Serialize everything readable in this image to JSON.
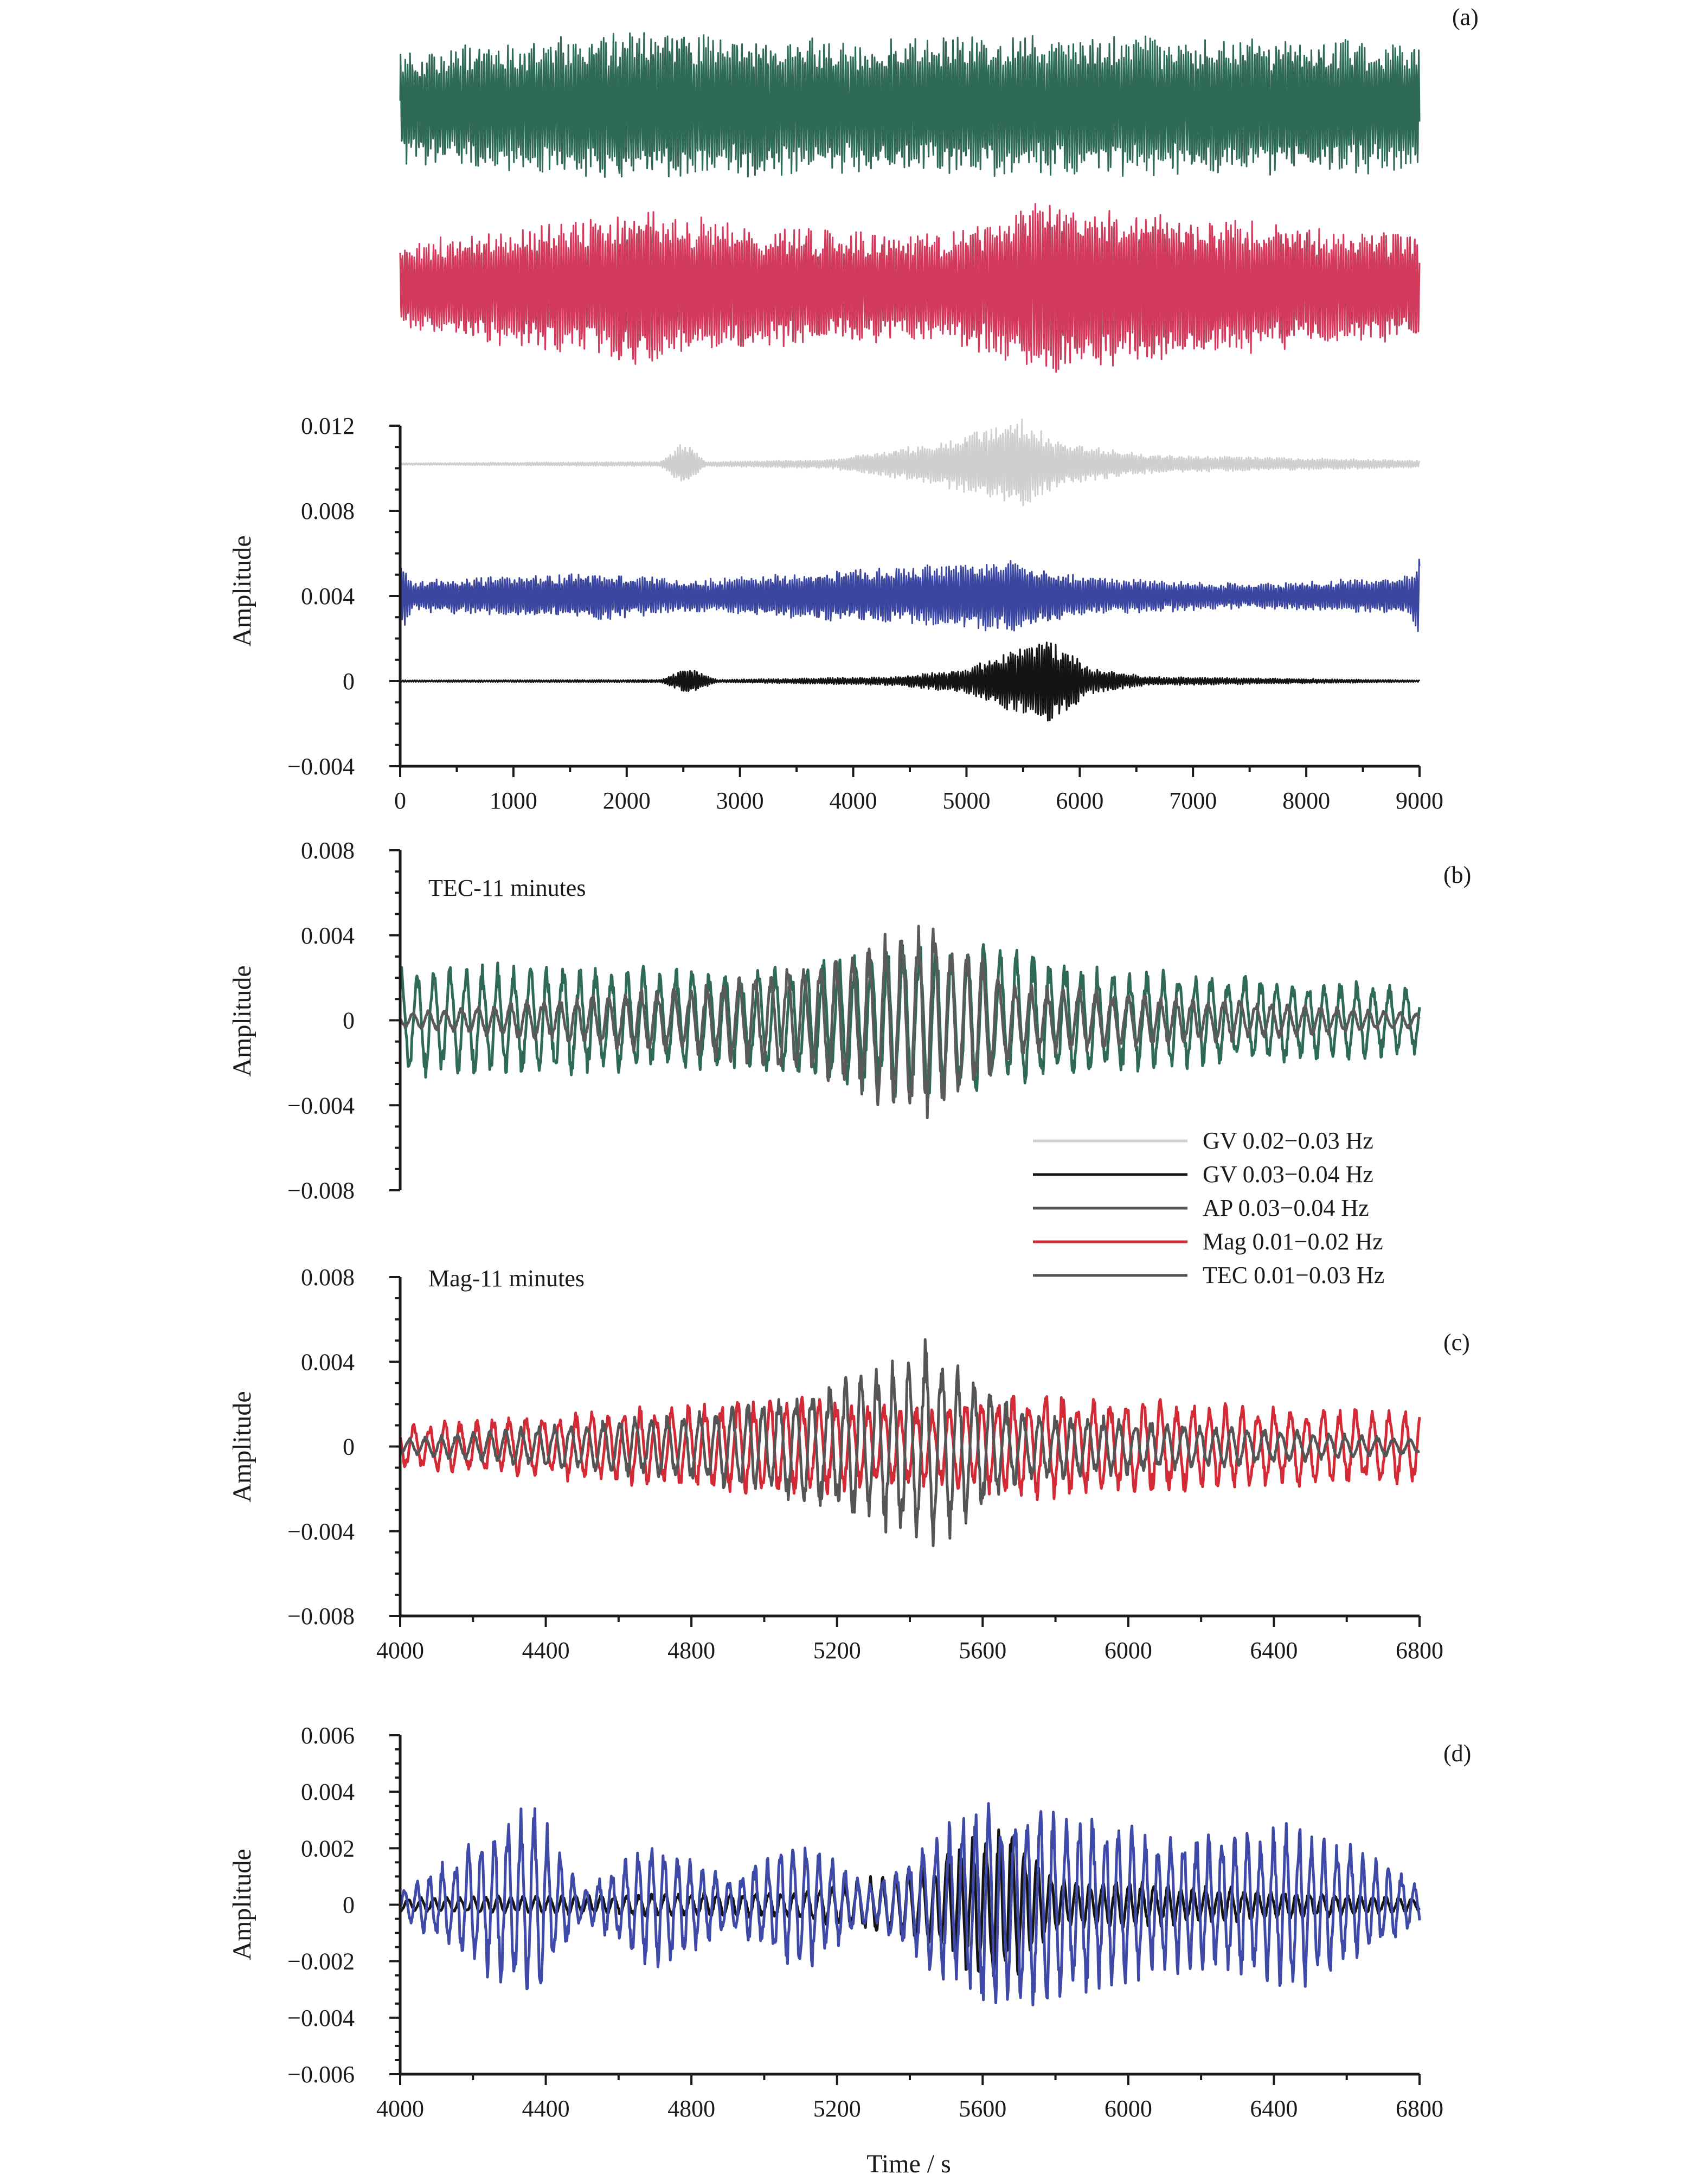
{
  "chart_data": [
    {
      "panel": "(a)",
      "type": "line",
      "ylabel": "Amplitude",
      "xlabel": "",
      "xlim": [
        0,
        9000
      ],
      "ylim": [
        -0.004,
        0.012
      ],
      "x_ticks": [
        "0",
        "1000",
        "2000",
        "3000",
        "4000",
        "5000",
        "6000",
        "7000",
        "8000",
        "9000"
      ],
      "y_ticks": [
        "0.012",
        "0.008",
        "0.004",
        "0",
        "−0.004"
      ],
      "series": [
        {
          "key": "tec",
          "color": "#2f6a57",
          "offset": 0.027,
          "amplitude": 0.0045,
          "envelope": [
            [
              0,
              0.6
            ],
            [
              2000,
              0.8
            ],
            [
              4000,
              0.7
            ],
            [
              6000,
              0.75
            ],
            [
              9000,
              0.7
            ]
          ]
        },
        {
          "key": "mag",
          "color": "#d23a5c",
          "offset": 0.0185,
          "amplitude": 0.0042,
          "envelope": [
            [
              0,
              0.5
            ],
            [
              2200,
              0.9
            ],
            [
              3000,
              0.7
            ],
            [
              4800,
              0.6
            ],
            [
              5600,
              1.0
            ],
            [
              7000,
              0.8
            ],
            [
              9000,
              0.6
            ]
          ]
        },
        {
          "key": "gv1",
          "color": "#cfcfcf",
          "offset": 0.0102,
          "amplitude": 0.0022,
          "envelope": [
            [
              0,
              0.02
            ],
            [
              2300,
              0.05
            ],
            [
              2500,
              0.5
            ],
            [
              2700,
              0.05
            ],
            [
              3800,
              0.1
            ],
            [
              4800,
              0.5
            ],
            [
              5200,
              0.8
            ],
            [
              5500,
              1.0
            ],
            [
              5800,
              0.5
            ],
            [
              6600,
              0.2
            ],
            [
              9000,
              0.08
            ]
          ]
        },
        {
          "key": "ap",
          "color": "#3a46a0",
          "offset": 0.004,
          "amplitude": 0.0019,
          "envelope": [
            [
              0,
              1.0
            ],
            [
              100,
              0.4
            ],
            [
              1800,
              0.6
            ],
            [
              2500,
              0.4
            ],
            [
              4300,
              0.7
            ],
            [
              5400,
              0.9
            ],
            [
              6000,
              0.5
            ],
            [
              7500,
              0.3
            ],
            [
              8900,
              0.5
            ],
            [
              9000,
              1.0
            ]
          ]
        },
        {
          "key": "gv2",
          "color": "#141414",
          "offset": 0.0,
          "amplitude": 0.0021,
          "envelope": [
            [
              0,
              0.02
            ],
            [
              2300,
              0.03
            ],
            [
              2550,
              0.3
            ],
            [
              2800,
              0.03
            ],
            [
              4400,
              0.1
            ],
            [
              5000,
              0.3
            ],
            [
              5700,
              1.0
            ],
            [
              6100,
              0.3
            ],
            [
              6600,
              0.1
            ],
            [
              9000,
              0.02
            ]
          ]
        }
      ]
    },
    {
      "panel": "(b)",
      "type": "line",
      "annotation": "TEC-11 minutes",
      "annotation_color": "#333333",
      "ylabel": "Amplitude",
      "xlabel": "",
      "xlim": [
        4000,
        6800
      ],
      "ylim": [
        -0.008,
        0.008
      ],
      "y_ticks": [
        "0.008",
        "0.004",
        "0",
        "−0.004",
        "−0.008"
      ],
      "series": [
        {
          "key": "tec_shifted",
          "color": "#2f6a57",
          "amplitude": 0.0035,
          "envelope": [
            [
              4000,
              0.8
            ],
            [
              5000,
              0.7
            ],
            [
              5450,
              1.2
            ],
            [
              6000,
              0.7
            ],
            [
              6800,
              0.5
            ]
          ]
        },
        {
          "key": "tec",
          "color": "#5a5a5a",
          "amplitude": 0.0035,
          "envelope": [
            [
              4000,
              0.1
            ],
            [
              4800,
              0.5
            ],
            [
              5200,
              0.9
            ],
            [
              5450,
              1.5
            ],
            [
              5700,
              0.5
            ],
            [
              6800,
              0.1
            ]
          ]
        }
      ]
    },
    {
      "panel": "(c)",
      "type": "line",
      "annotation": "Mag-11 minutes",
      "annotation_color": "#d23a5c",
      "ylabel": "Amplitude",
      "xlabel": "",
      "xlim": [
        4000,
        6800
      ],
      "ylim": [
        -0.008,
        0.008
      ],
      "x_ticks": [
        "4000",
        "4400",
        "4800",
        "5200",
        "5600",
        "6000",
        "6400",
        "6800"
      ],
      "y_ticks": [
        "0.008",
        "0.004",
        "0",
        "−0.004",
        "−0.008"
      ],
      "series": [
        {
          "key": "mag_shifted",
          "color": "#d42a36",
          "amplitude": 0.0022,
          "envelope": [
            [
              4000,
              0.5
            ],
            [
              5100,
              1.1
            ],
            [
              5500,
              0.9
            ],
            [
              5700,
              1.2
            ],
            [
              6200,
              1.0
            ],
            [
              6800,
              0.8
            ]
          ]
        },
        {
          "key": "tec",
          "color": "#555555",
          "amplitude": 0.0035,
          "envelope": [
            [
              4000,
              0.1
            ],
            [
              4800,
              0.5
            ],
            [
              5200,
              0.9
            ],
            [
              5450,
              1.5
            ],
            [
              5700,
              0.5
            ],
            [
              6800,
              0.1
            ]
          ]
        }
      ]
    },
    {
      "panel": "(d)",
      "type": "line",
      "ylabel": "Amplitude",
      "xlabel": "Time / s",
      "xlim": [
        4000,
        6800
      ],
      "ylim": [
        -0.006,
        0.006
      ],
      "x_ticks": [
        "4000",
        "4400",
        "4800",
        "5200",
        "5600",
        "6000",
        "6400",
        "6800"
      ],
      "y_ticks": [
        "0.006",
        "0.004",
        "0.002",
        "0",
        "−0.002",
        "−0.004",
        "−0.006"
      ],
      "series": [
        {
          "key": "gv2",
          "color": "#141414",
          "amplitude": 0.0025,
          "envelope": [
            [
              4000,
              0.1
            ],
            [
              5100,
              0.2
            ],
            [
              5450,
              0.6
            ],
            [
              5650,
              1.3
            ],
            [
              5800,
              0.4
            ],
            [
              6800,
              0.1
            ]
          ]
        },
        {
          "key": "ap",
          "color": "#3f4aa8",
          "amplitude": 0.0025,
          "envelope": [
            [
              4000,
              0.2
            ],
            [
              4370,
              1.5
            ],
            [
              4500,
              0.2
            ],
            [
              4700,
              1.0
            ],
            [
              4900,
              0.4
            ],
            [
              5100,
              1.0
            ],
            [
              5300,
              0.3
            ],
            [
              5600,
              1.6
            ],
            [
              5850,
              1.4
            ],
            [
              6100,
              1.0
            ],
            [
              6500,
              1.2
            ],
            [
              6800,
              0.3
            ]
          ]
        }
      ]
    }
  ],
  "legend": [
    {
      "label": "GV 0.02−0.03 Hz",
      "color": "#cfcfcf"
    },
    {
      "label": "GV 0.03−0.04 Hz",
      "color": "#141414"
    },
    {
      "label": "AP 0.03−0.04 Hz",
      "color": "#555555"
    },
    {
      "label": "Mag 0.01−0.02 Hz",
      "color": "#d42a36"
    },
    {
      "label": "TEC 0.01−0.03 Hz",
      "color": "#555555"
    }
  ]
}
